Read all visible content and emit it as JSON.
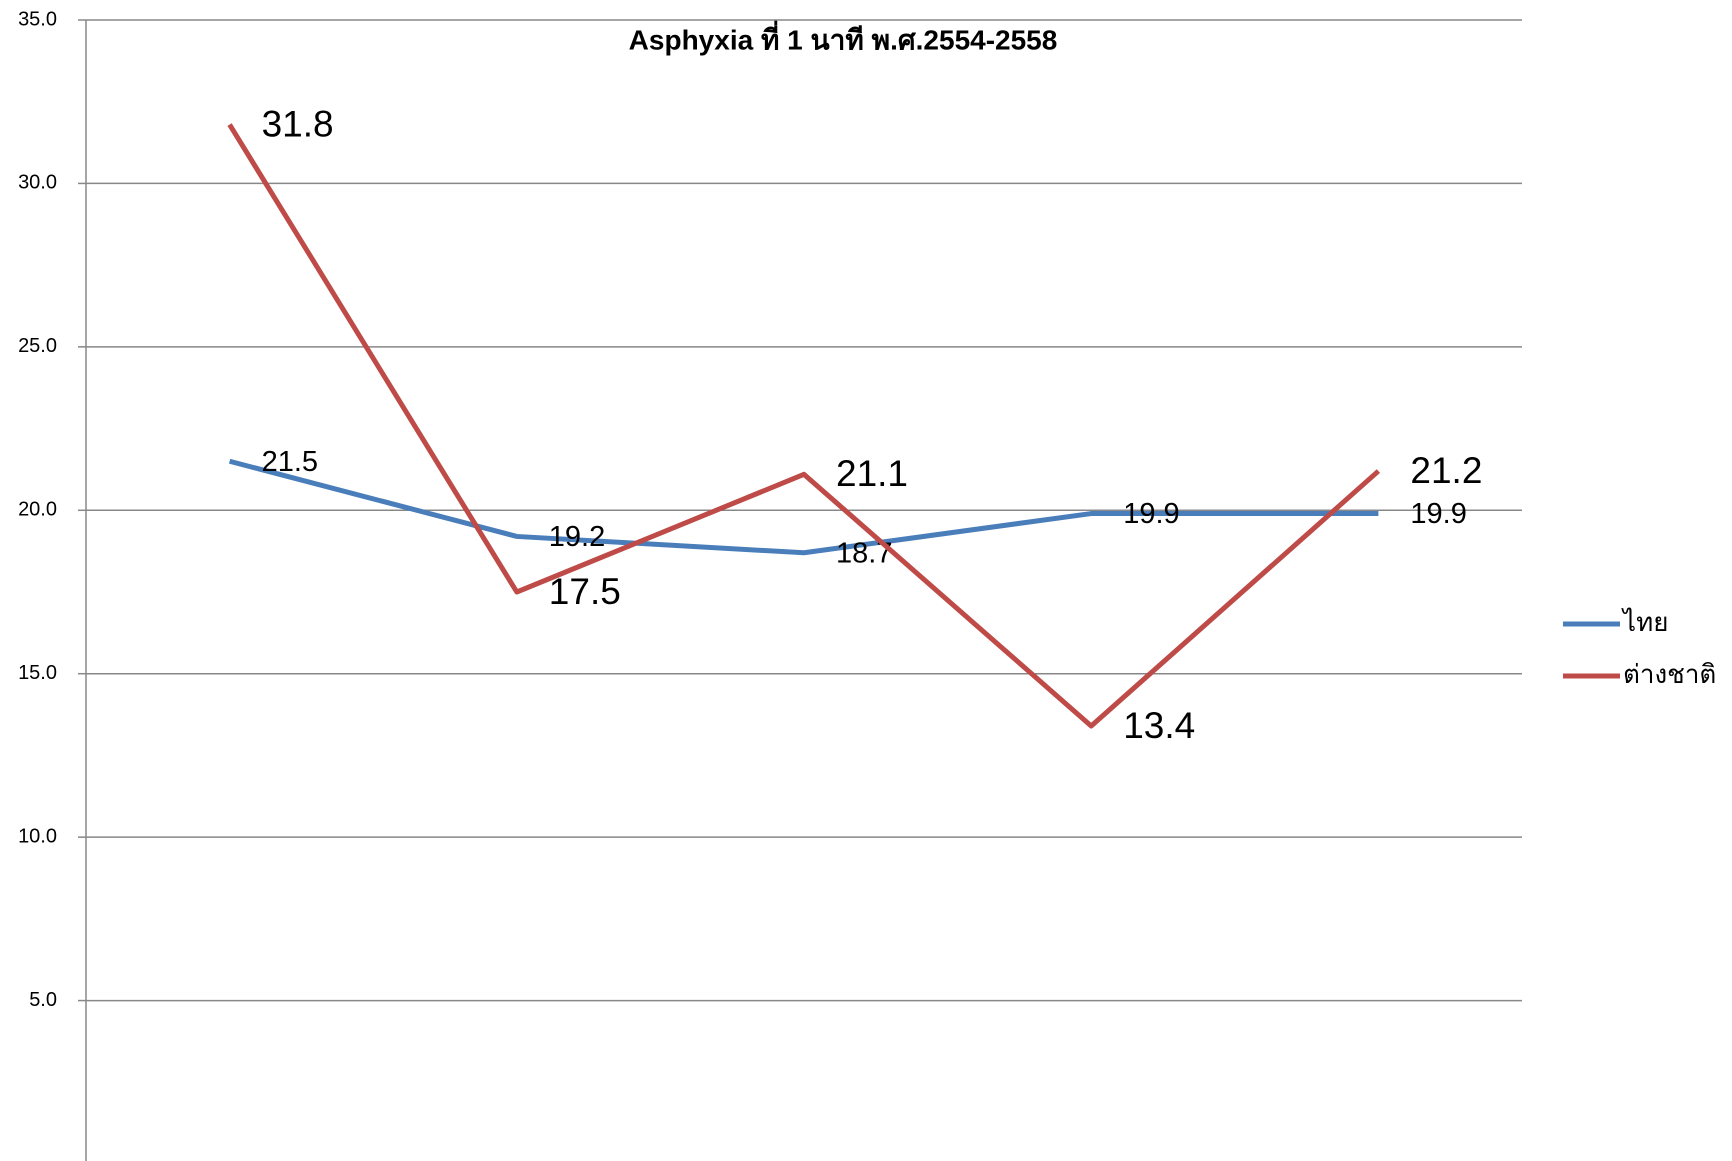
{
  "chart_data": {
    "type": "line",
    "title": "Asphyxia ที่ 1 นาที พ.ศ.2554-2558",
    "categories": [
      null,
      null,
      null,
      null,
      null
    ],
    "series": [
      {
        "name": "ไทย",
        "color": "#4a7ebb",
        "values": [
          21.5,
          19.2,
          18.7,
          19.9,
          19.9
        ]
      },
      {
        "name": "ต่างชาติ",
        "color": "#be4b48",
        "values": [
          31.8,
          17.5,
          21.1,
          13.4,
          21.2
        ]
      }
    ],
    "ylim": [
      0,
      35
    ],
    "yticks": [
      {
        "value": 5,
        "label": "5.0"
      },
      {
        "value": 10,
        "label": "10.0"
      },
      {
        "value": 15,
        "label": "15.0"
      },
      {
        "value": 20,
        "label": "20.0"
      },
      {
        "value": 25,
        "label": "25.0"
      },
      {
        "value": 30,
        "label": "30.0"
      },
      {
        "value": 35,
        "label": "35.0"
      }
    ],
    "grid": true,
    "legend": "right"
  }
}
